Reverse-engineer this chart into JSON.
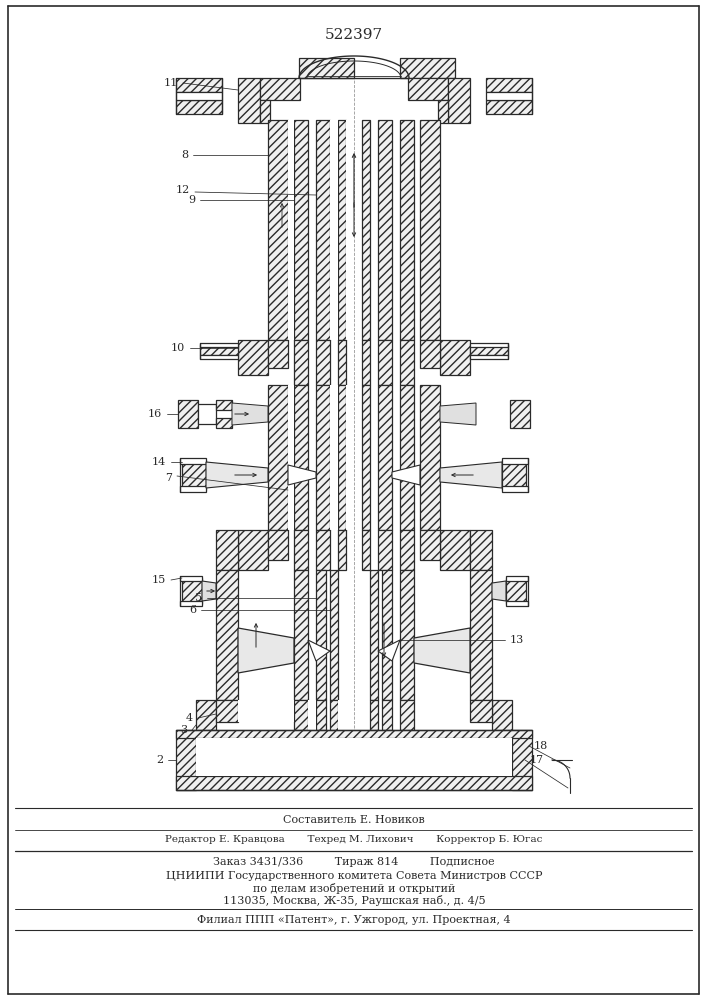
{
  "title_number": "522397",
  "background_color": "#ffffff",
  "line_color": "#2a2a2a",
  "footer_lines": [
    "Составитель Е. Новиков",
    "Редактор Е. Кравцова       Техред М. Лихович       Корректор Б. Югас",
    "Заказ 3431/336         Тираж 814         Подписное",
    "ЦНИИПИ Государственного комитета Совета Министров СССР",
    "по делам изобретений и открытий",
    "113035, Москва, Ж-35, Раушская наб., д. 4/5",
    "Филиал ППП «Патент», г. Ужгород, ул. Проектная, 4"
  ],
  "figsize": [
    7.07,
    10.0
  ],
  "dpi": 100
}
